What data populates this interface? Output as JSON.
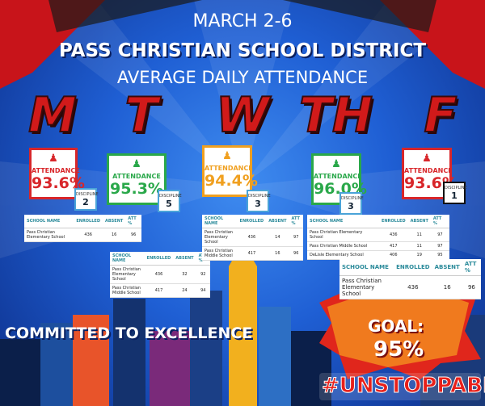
{
  "header": {
    "date": "MARCH 2-6",
    "district": "PASS CHRISTIAN SCHOOL DISTRICT",
    "subtitle": "AVERAGE DAILY ATTENDANCE"
  },
  "days": [
    {
      "letter": "M",
      "attendance_label": "ATTENDANCE",
      "attendance": "93.6%",
      "discipline_label": "DISCIPLINE",
      "discipline": "2"
    },
    {
      "letter": "T",
      "attendance_label": "ATTENDANCE",
      "attendance": "95.3%",
      "discipline_label": "DISCIPLINE",
      "discipline": "5"
    },
    {
      "letter": "W",
      "attendance_label": "ATTENDANCE",
      "attendance": "94.4%",
      "discipline_label": "DISCIPLINE",
      "discipline": "3"
    },
    {
      "letter": "TH",
      "attendance_label": "ATTENDANCE",
      "attendance": "96.0%",
      "discipline_label": "DISCIPLINE",
      "discipline": "3"
    },
    {
      "letter": "F",
      "attendance_label": "ATTENDANCE",
      "attendance": "93.6%",
      "discipline_label": "DISCIPLINE",
      "discipline": "1"
    }
  ],
  "tables": [
    {
      "headers": [
        "SCHOOL NAME",
        "ENROLLED",
        "ABSENT",
        "ATT %"
      ],
      "rows": [
        [
          "Pass Christian Elementary School",
          "436",
          "16",
          "96"
        ]
      ]
    },
    {
      "headers": [
        "SCHOOL NAME",
        "ENROLLED",
        "ABSENT",
        "ATT %"
      ],
      "rows": [
        [
          "Pass Christian Elementary School",
          "436",
          "32",
          "92"
        ],
        [
          "Pass Christian Middle School",
          "417",
          "24",
          "94"
        ]
      ]
    },
    {
      "headers": [
        "SCHOOL NAME",
        "ENROLLED",
        "ABSENT",
        "ATT %"
      ],
      "rows": [
        [
          "Pass Christian Elementary School",
          "436",
          "14",
          "97"
        ],
        [
          "Pass Christian Middle School",
          "417",
          "16",
          "96"
        ]
      ]
    },
    {
      "headers": [
        "SCHOOL NAME",
        "ENROLLED",
        "ABSENT",
        "ATT %"
      ],
      "rows": [
        [
          "Pass Christian Elementary School",
          "436",
          "11",
          "97"
        ],
        [
          "Pass Christian Middle School",
          "417",
          "11",
          "97"
        ],
        [
          "DeLisle Elementary School",
          "406",
          "19",
          "95"
        ]
      ]
    },
    {
      "headers": [
        "SCHOOL NAME",
        "ENROLLED",
        "ABSENT",
        "ATT %"
      ],
      "rows": [
        [
          "Pass Christian Elementary School",
          "436",
          "16",
          "96"
        ]
      ]
    }
  ],
  "footer": {
    "motto": "COMMITTED TO EXCELLENCE",
    "goal_label": "GOAL:",
    "goal": "95%",
    "hashtag": "#UNSTOPPABLE"
  }
}
